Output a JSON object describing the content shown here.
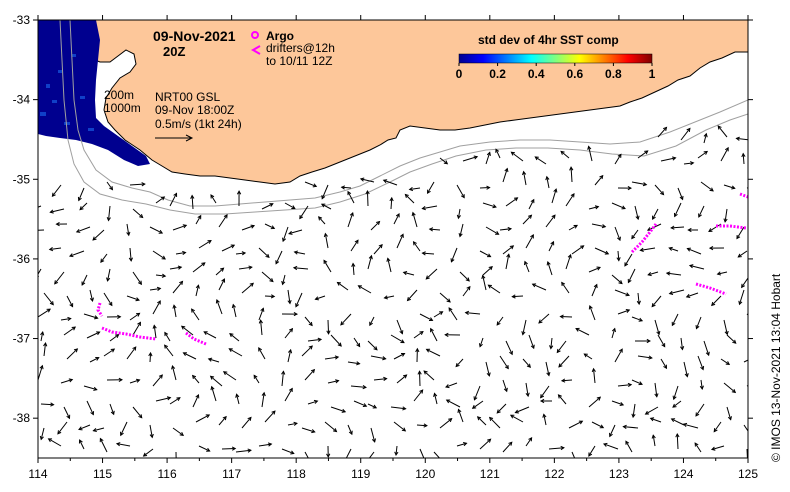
{
  "map": {
    "date": "09-Nov-2021",
    "time": "20Z",
    "product": "NRT00 GSL",
    "field_time": "09-Nov 18:00Z",
    "scale_label": "0.5m/s (1kt 24h)",
    "isobaths": [
      "200m",
      "1000m"
    ],
    "credit": "©  IMOS 13-Nov-2021 13:04 Hobart"
  },
  "legend": {
    "argo_label": "Argo",
    "drifters_label": "drifters@12h",
    "drifters_to": "to 10/11 12Z",
    "argo_color": "#ff00ff"
  },
  "colorbar": {
    "title": "std dev of 4hr SST comp",
    "ticks": [
      "0",
      "0.2",
      "0.4",
      "0.6",
      "0.8",
      "1"
    ],
    "colors": [
      "#00008f",
      "#0000ff",
      "#0080ff",
      "#00ffff",
      "#80ff80",
      "#ffff00",
      "#ff8000",
      "#ff0000",
      "#800000"
    ]
  },
  "axes": {
    "x_ticks": [
      "114",
      "115",
      "116",
      "117",
      "118",
      "119",
      "120",
      "121",
      "122",
      "123",
      "124",
      "125"
    ],
    "y_ticks": [
      "-33",
      "-34",
      "-35",
      "-36",
      "-37",
      "-38"
    ],
    "lon_range": [
      114,
      125
    ],
    "lat_range": [
      -38.5,
      -33
    ]
  },
  "colors": {
    "land": "#fdc79a",
    "coast": "#000000",
    "isobath": "#a0a0a0",
    "sst_dark": "#00008f"
  }
}
